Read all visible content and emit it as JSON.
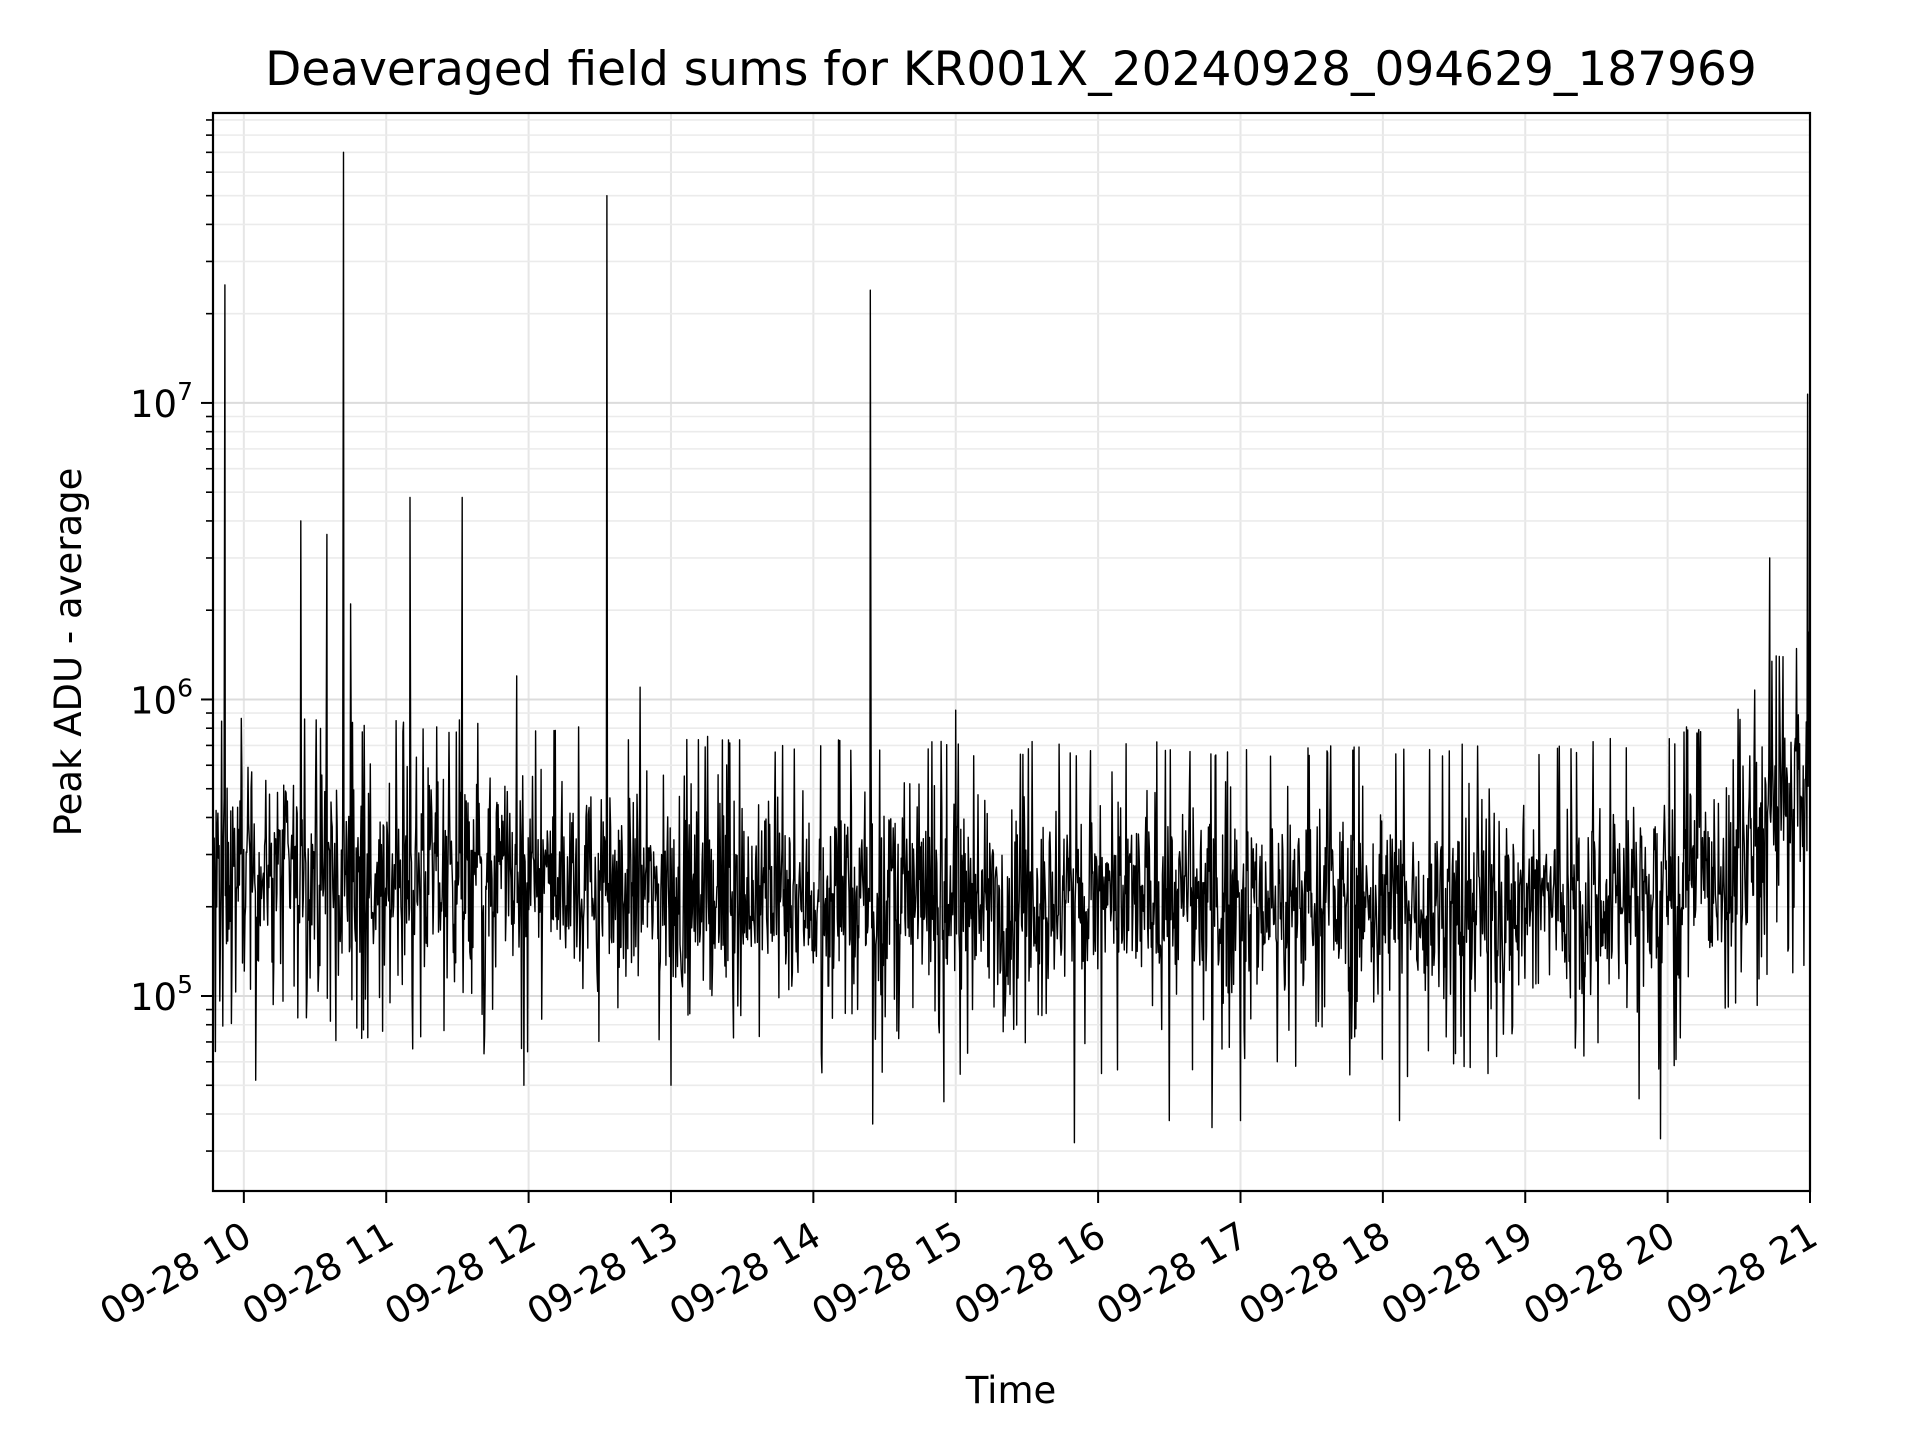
{
  "chart_data": {
    "type": "line",
    "title": "Deaveraged field sums for KR001X_20240928_094629_187969",
    "xlabel": "Time",
    "ylabel": "Peak ADU - average",
    "y_scale": "log",
    "ylim": [
      22000,
      95000000
    ],
    "xlim": [
      "2024-09-28 09:47",
      "2024-09-28 21:00"
    ],
    "grid": true,
    "line_color": "#000000",
    "x_ticks": [
      {
        "value": "2024-09-28 10:00",
        "label": "09-28 10"
      },
      {
        "value": "2024-09-28 11:00",
        "label": "09-28 11"
      },
      {
        "value": "2024-09-28 12:00",
        "label": "09-28 12"
      },
      {
        "value": "2024-09-28 13:00",
        "label": "09-28 13"
      },
      {
        "value": "2024-09-28 14:00",
        "label": "09-28 14"
      },
      {
        "value": "2024-09-28 15:00",
        "label": "09-28 15"
      },
      {
        "value": "2024-09-28 16:00",
        "label": "09-28 16"
      },
      {
        "value": "2024-09-28 17:00",
        "label": "09-28 17"
      },
      {
        "value": "2024-09-28 18:00",
        "label": "09-28 18"
      },
      {
        "value": "2024-09-28 19:00",
        "label": "09-28 19"
      },
      {
        "value": "2024-09-28 20:00",
        "label": "09-28 20"
      },
      {
        "value": "2024-09-28 21:00",
        "label": "09-28 21"
      }
    ],
    "y_ticks": [
      {
        "value": 100000,
        "base": "10",
        "exp": "5"
      },
      {
        "value": 1000000,
        "base": "10",
        "exp": "6"
      },
      {
        "value": 10000000,
        "base": "10",
        "exp": "7"
      }
    ],
    "baseline": [
      {
        "x": "2024-09-28 09:47",
        "y": 300000
      },
      {
        "x": "2024-09-28 10:15",
        "y": 310000
      },
      {
        "x": "2024-09-28 11:00",
        "y": 290000
      },
      {
        "x": "2024-09-28 12:00",
        "y": 290000
      },
      {
        "x": "2024-09-28 13:00",
        "y": 260000
      },
      {
        "x": "2024-09-28 14:00",
        "y": 250000
      },
      {
        "x": "2024-09-28 15:00",
        "y": 245000
      },
      {
        "x": "2024-09-28 16:00",
        "y": 245000
      },
      {
        "x": "2024-09-28 17:00",
        "y": 245000
      },
      {
        "x": "2024-09-28 18:00",
        "y": 235000
      },
      {
        "x": "2024-09-28 19:00",
        "y": 245000
      },
      {
        "x": "2024-09-28 20:00",
        "y": 260000
      },
      {
        "x": "2024-09-28 20:30",
        "y": 320000
      },
      {
        "x": "2024-09-28 20:45",
        "y": 480000
      },
      {
        "x": "2024-09-28 21:00",
        "y": 600000
      }
    ],
    "spikes": [
      {
        "x": "2024-09-28 09:52",
        "y": 25000000
      },
      {
        "x": "2024-09-28 10:24",
        "y": 4000000
      },
      {
        "x": "2024-09-28 10:35",
        "y": 3600000
      },
      {
        "x": "2024-09-28 10:42",
        "y": 70000000
      },
      {
        "x": "2024-09-28 10:45",
        "y": 2100000
      },
      {
        "x": "2024-09-28 11:10",
        "y": 4800000
      },
      {
        "x": "2024-09-28 11:32",
        "y": 4800000
      },
      {
        "x": "2024-09-28 11:55",
        "y": 1200000
      },
      {
        "x": "2024-09-28 12:33",
        "y": 50000000
      },
      {
        "x": "2024-09-28 12:47",
        "y": 1100000
      },
      {
        "x": "2024-09-28 14:24",
        "y": 24000000
      },
      {
        "x": "2024-09-28 15:00",
        "y": 920000
      },
      {
        "x": "2024-09-28 20:43",
        "y": 3000000
      },
      {
        "x": "2024-09-28 20:59",
        "y": 10700000
      }
    ],
    "dips": [
      {
        "x": "2024-09-28 09:48",
        "y": 65000
      },
      {
        "x": "2024-09-28 10:05",
        "y": 52000
      },
      {
        "x": "2024-09-28 11:58",
        "y": 50000
      },
      {
        "x": "2024-09-28 13:00",
        "y": 50000
      },
      {
        "x": "2024-09-28 14:25",
        "y": 37000
      },
      {
        "x": "2024-09-28 14:55",
        "y": 44000
      },
      {
        "x": "2024-09-28 15:50",
        "y": 32000
      },
      {
        "x": "2024-09-28 16:30",
        "y": 38000
      },
      {
        "x": "2024-09-28 16:48",
        "y": 36000
      },
      {
        "x": "2024-09-28 17:00",
        "y": 38000
      },
      {
        "x": "2024-09-28 18:07",
        "y": 38000
      },
      {
        "x": "2024-09-28 19:48",
        "y": 45000
      },
      {
        "x": "2024-09-28 19:57",
        "y": 33000
      }
    ],
    "noise_range_decades": [
      -0.55,
      0.42
    ],
    "sample_count": 2600
  }
}
